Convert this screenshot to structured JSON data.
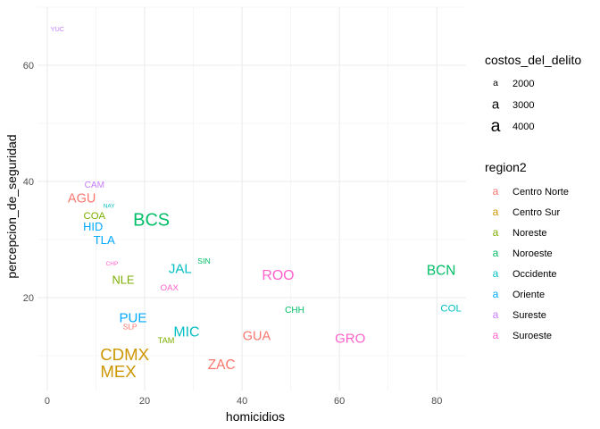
{
  "chart_data": {
    "type": "scatter",
    "xlabel": "homicidios",
    "ylabel": "percepcion_de_seguridad",
    "xlim": [
      -2,
      86
    ],
    "ylim": [
      4,
      70
    ],
    "x_ticks": [
      0,
      20,
      40,
      60,
      80
    ],
    "y_ticks": [
      20,
      40,
      60
    ],
    "grid": true,
    "legend_position": "right",
    "size_legend": {
      "title": "costos_del_delito",
      "entries": [
        {
          "label": "2000",
          "value": 2000
        },
        {
          "label": "3000",
          "value": 3000
        },
        {
          "label": "4000",
          "value": 4000
        }
      ]
    },
    "color_legend": {
      "title": "region2",
      "entries": [
        {
          "label": "Centro Norte",
          "color": "#F8766D"
        },
        {
          "label": "Centro Sur",
          "color": "#CD9600"
        },
        {
          "label": "Noreste",
          "color": "#7CAE00"
        },
        {
          "label": "Noroeste",
          "color": "#00BE67"
        },
        {
          "label": "Occidente",
          "color": "#00BFC4"
        },
        {
          "label": "Oriente",
          "color": "#00A9FF"
        },
        {
          "label": "Sureste",
          "color": "#C77CFF"
        },
        {
          "label": "Suroeste",
          "color": "#FF61CC"
        }
      ]
    },
    "points": [
      {
        "label": "YUC",
        "x": 2.1,
        "y": 66.2,
        "region": "Sureste",
        "cost": 1300
      },
      {
        "label": "CAM",
        "x": 9.7,
        "y": 39.3,
        "region": "Sureste",
        "cost": 1900
      },
      {
        "label": "AGU",
        "x": 7.1,
        "y": 37.0,
        "region": "Centro Norte",
        "cost": 2900
      },
      {
        "label": "NAY",
        "x": 12.7,
        "y": 35.7,
        "region": "Occidente",
        "cost": 1100
      },
      {
        "label": "COA",
        "x": 9.7,
        "y": 34.0,
        "region": "Noreste",
        "cost": 2200
      },
      {
        "label": "BCS",
        "x": 21.4,
        "y": 33.3,
        "region": "Noroeste",
        "cost": 4100
      },
      {
        "label": "HID",
        "x": 9.4,
        "y": 32.2,
        "region": "Oriente",
        "cost": 2500
      },
      {
        "label": "TLA",
        "x": 11.7,
        "y": 29.9,
        "region": "Oriente",
        "cost": 2600
      },
      {
        "label": "SIN",
        "x": 32.2,
        "y": 26.3,
        "region": "Noroeste",
        "cost": 1600
      },
      {
        "label": "CHP",
        "x": 13.3,
        "y": 25.8,
        "region": "Suroeste",
        "cost": 1100
      },
      {
        "label": "JAL",
        "x": 27.3,
        "y": 24.9,
        "region": "Occidente",
        "cost": 3000
      },
      {
        "label": "BCN",
        "x": 80.9,
        "y": 24.6,
        "region": "Noroeste",
        "cost": 3100
      },
      {
        "label": "ROO",
        "x": 47.4,
        "y": 23.8,
        "region": "Suroeste",
        "cost": 3200
      },
      {
        "label": "NLE",
        "x": 15.6,
        "y": 23.1,
        "region": "Noreste",
        "cost": 2500
      },
      {
        "label": "OAX",
        "x": 25.1,
        "y": 21.6,
        "region": "Suroeste",
        "cost": 1800
      },
      {
        "label": "COL",
        "x": 82.9,
        "y": 18.1,
        "region": "Occidente",
        "cost": 2200
      },
      {
        "label": "CHH",
        "x": 50.8,
        "y": 17.8,
        "region": "Noroeste",
        "cost": 1900
      },
      {
        "label": "PUE",
        "x": 17.6,
        "y": 16.5,
        "region": "Oriente",
        "cost": 3000
      },
      {
        "label": "SLP",
        "x": 17.0,
        "y": 15.0,
        "region": "Centro Norte",
        "cost": 1500
      },
      {
        "label": "MIC",
        "x": 28.6,
        "y": 14.0,
        "region": "Occidente",
        "cost": 3200
      },
      {
        "label": "GUA",
        "x": 43.0,
        "y": 13.3,
        "region": "Centro Norte",
        "cost": 2900
      },
      {
        "label": "GRO",
        "x": 62.2,
        "y": 12.9,
        "region": "Suroeste",
        "cost": 3000
      },
      {
        "label": "TAM",
        "x": 24.4,
        "y": 12.6,
        "region": "Noreste",
        "cost": 1700
      },
      {
        "label": "CDMX",
        "x": 15.9,
        "y": 10.2,
        "region": "Centro Sur",
        "cost": 3800
      },
      {
        "label": "ZAC",
        "x": 35.8,
        "y": 8.4,
        "region": "Centro Norte",
        "cost": 3100
      },
      {
        "label": "MEX",
        "x": 14.6,
        "y": 7.3,
        "region": "Centro Sur",
        "cost": 3800
      }
    ]
  }
}
